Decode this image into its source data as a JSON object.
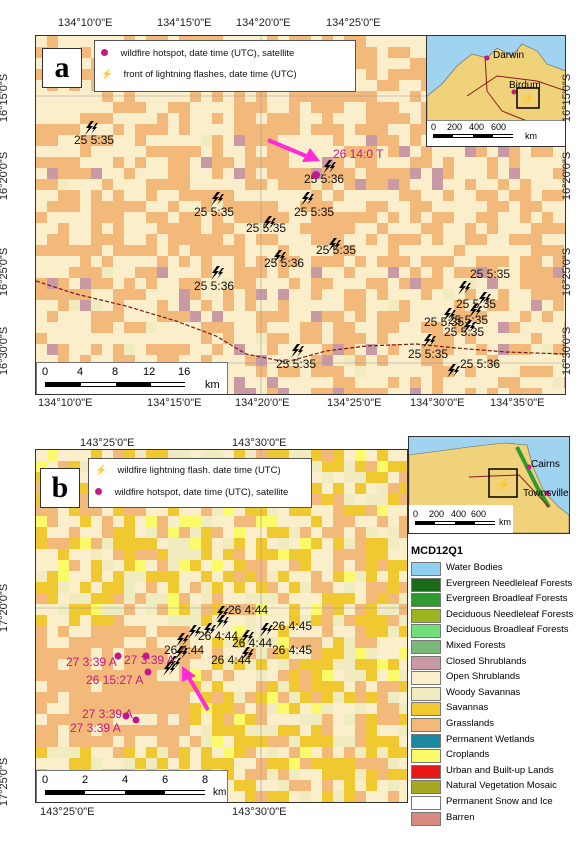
{
  "panel_a": {
    "letter": "a",
    "top_ticks": [
      "134°10'0\"E",
      "134°15'0\"E",
      "134°20'0\"E",
      "134°25'0\"E"
    ],
    "bottom_ticks": [
      "134°10'0\"E",
      "134°15'0\"E",
      "134°20'0\"E",
      "134°25'0\"E",
      "134°30'0\"E",
      "134°35'0\"E"
    ],
    "left_ticks": [
      "16°15'0\"S",
      "16°20'0\"S",
      "16°25'0\"S",
      "16°30'0\"S"
    ],
    "right_ticks": [
      "16°15'0\"S",
      "16°20'0\"S",
      "16°25'0\"S",
      "16°30'0\"S"
    ],
    "legend": {
      "hotspot": "wildfire hotspot, date time (UTC), satellite",
      "lightning": "front of lightning flashes, date time (UTC)"
    },
    "inset_labels": {
      "city1": "Darwin",
      "city2": "Birdum"
    },
    "inset_scale": {
      "ticks": [
        "0",
        "200",
        "400",
        "600"
      ],
      "unit": "km"
    },
    "scale": {
      "ticks": [
        "0",
        "4",
        "8",
        "12",
        "16"
      ],
      "unit": "km"
    },
    "hotspot_label": "26 14:0 T",
    "lightning_labels": [
      "25 5:35",
      "25 5:36",
      "25 5:35",
      "25 5:35",
      "25 5:35",
      "25 5:36",
      "25 5:36",
      "25 5:35",
      "25 5:35",
      "25 5:35",
      "25 5:35",
      "25 5:35",
      "25 5:35",
      "25 5:35",
      "25 5:35",
      "25 5:36"
    ]
  },
  "panel_b": {
    "letter": "b",
    "top_ticks": [
      "143°25'0\"E",
      "143°30'0\"E"
    ],
    "bottom_ticks": [
      "143°25'0\"E",
      "143°30'0\"E"
    ],
    "left_ticks": [
      "17°20'0\"S",
      "17°25'0\"S"
    ],
    "legend": {
      "lightning": "wildfire lightning flash. date time (UTC)",
      "hotspot": "wildfire hotspot, date time (UTC), satellite"
    },
    "inset_labels": {
      "city1": "Cairns",
      "city2": "Townsville"
    },
    "inset_scale": {
      "ticks": [
        "0",
        "200",
        "400",
        "600"
      ],
      "unit": "km"
    },
    "scale": {
      "ticks": [
        "0",
        "2",
        "4",
        "6",
        "8"
      ],
      "unit": "km"
    },
    "lightning_labels": [
      "26 4:44",
      "26 4:44",
      "26 4:44",
      "26 4:45",
      "26 4:44",
      "26 4:44",
      "26 4:45"
    ],
    "hotspot_labels": [
      "27 3:39 A",
      "27 3:39 A",
      "26 15:27 A",
      "27 3:39 A",
      "27 3:39 A"
    ]
  },
  "mcd12q1": {
    "title": "MCD12Q1",
    "classes": [
      {
        "name": "Water Bodies",
        "color": "#8fd0f0"
      },
      {
        "name": "Evergreen Needleleaf Forests",
        "color": "#1a6b1a"
      },
      {
        "name": "Evergreen Broadleaf Forests",
        "color": "#2f9a2f"
      },
      {
        "name": "Deciduous Needleleaf Forests",
        "color": "#9fb520"
      },
      {
        "name": "Deciduous Broadleaf Forests",
        "color": "#72e07a"
      },
      {
        "name": "Mixed Forests",
        "color": "#79b879"
      },
      {
        "name": "Closed Shrublands",
        "color": "#c99aa3"
      },
      {
        "name": "Open Shrublands",
        "color": "#fbeecb"
      },
      {
        "name": "Woody Savannas",
        "color": "#f1ecbf"
      },
      {
        "name": "Savannas",
        "color": "#f0c830"
      },
      {
        "name": "Grasslands",
        "color": "#f2b97a"
      },
      {
        "name": "Permanent Wetlands",
        "color": "#1b8aa0"
      },
      {
        "name": "Croplands",
        "color": "#fbfb6a"
      },
      {
        "name": "Urban and Built-up Lands",
        "color": "#e81818"
      },
      {
        "name": "Natural Vegetation Mosaic",
        "color": "#a8a820"
      },
      {
        "name": "Permanent Snow and Ice",
        "color": "#ffffff"
      },
      {
        "name": "Barren",
        "color": "#d98a80"
      }
    ]
  }
}
